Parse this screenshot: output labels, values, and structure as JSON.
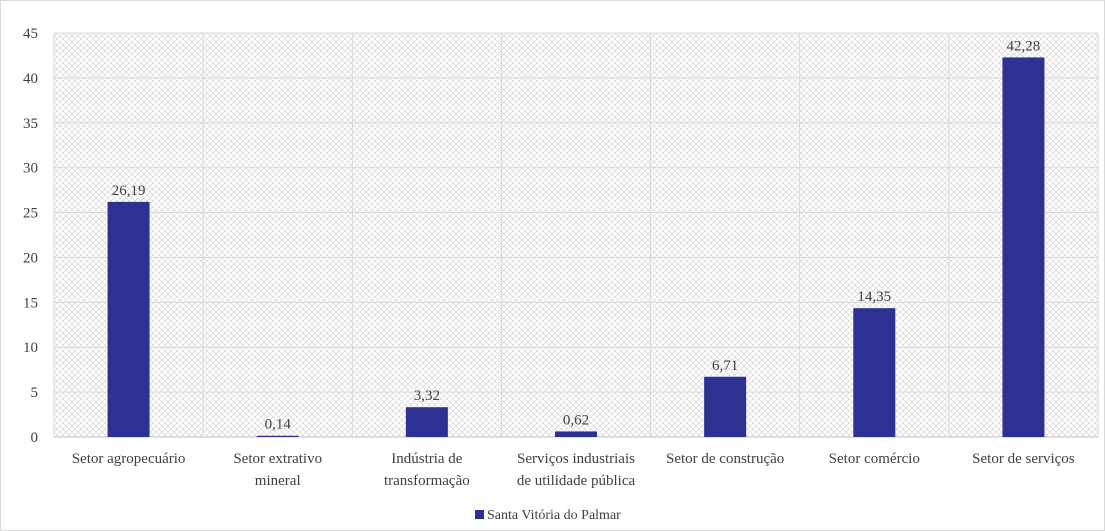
{
  "chart_data": {
    "type": "bar",
    "categories": [
      "Setor agropecuário",
      "Setor extrativo mineral",
      "Indústria de transformação",
      "Serviços industriais de utilidade pública",
      "Setor de construção",
      "Setor comércio",
      "Setor de serviços"
    ],
    "category_lines": [
      [
        "Setor agropecuário"
      ],
      [
        "Setor extrativo",
        "mineral"
      ],
      [
        "Indústria de",
        "transformação"
      ],
      [
        "Serviços industriais",
        "de utilidade pública"
      ],
      [
        "Setor de construção"
      ],
      [
        "Setor comércio"
      ],
      [
        "Setor de serviços"
      ]
    ],
    "series": [
      {
        "name": "Santa Vitória do Palmar",
        "values": [
          26.19,
          0.14,
          3.32,
          0.62,
          6.71,
          14.35,
          42.28
        ],
        "labels": [
          "26,19",
          "0,14",
          "3,32",
          "0,62",
          "6,71",
          "14,35",
          "42,28"
        ],
        "color": "#2e3192"
      }
    ],
    "ylim": [
      0,
      45
    ],
    "yticks": [
      0,
      5,
      10,
      15,
      20,
      25,
      30,
      35,
      40,
      45
    ],
    "grid": true,
    "legend": "bottom",
    "title": "",
    "xlabel": "",
    "ylabel": ""
  }
}
